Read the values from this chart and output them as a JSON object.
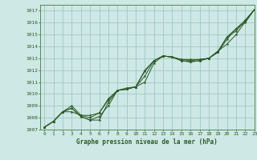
{
  "title": "Graphe pression niveau de la mer (hPa)",
  "bg_color": "#cde8e5",
  "grid_color": "#a0c8c4",
  "line_color": "#2d5a27",
  "spine_color": "#5a8a55",
  "xlim": [
    -0.5,
    23
  ],
  "ylim": [
    1007,
    1017.5
  ],
  "xticks": [
    0,
    1,
    2,
    3,
    4,
    5,
    6,
    7,
    8,
    9,
    10,
    11,
    12,
    13,
    14,
    15,
    16,
    17,
    18,
    19,
    20,
    21,
    22,
    23
  ],
  "yticks": [
    1007,
    1008,
    1009,
    1010,
    1011,
    1012,
    1013,
    1014,
    1015,
    1016,
    1017
  ],
  "lines": [
    [
      1007.2,
      1007.7,
      1008.5,
      1008.5,
      1008.2,
      1008.2,
      1008.4,
      1009.5,
      1010.3,
      1010.4,
      1010.6,
      1011.0,
      1012.6,
      1013.2,
      1013.1,
      1012.9,
      1012.9,
      1012.9,
      1013.0,
      1013.6,
      1014.2,
      1015.0,
      1016.1,
      1017.1
    ],
    [
      1007.2,
      1007.7,
      1008.5,
      1008.8,
      1008.1,
      1007.8,
      1007.8,
      1009.3,
      1010.3,
      1010.4,
      1010.6,
      1011.9,
      1012.8,
      1013.2,
      1013.1,
      1012.8,
      1012.7,
      1012.8,
      1013.0,
      1013.5,
      1014.6,
      1015.5,
      1016.2,
      1017.1
    ],
    [
      1007.2,
      1007.7,
      1008.5,
      1008.8,
      1008.1,
      1007.8,
      1008.1,
      1009.0,
      1010.3,
      1010.4,
      1010.6,
      1011.5,
      1012.8,
      1013.2,
      1013.1,
      1012.8,
      1012.7,
      1012.8,
      1013.0,
      1013.5,
      1014.8,
      1015.5,
      1016.0,
      1017.1
    ],
    [
      1007.2,
      1007.7,
      1008.5,
      1009.0,
      1008.2,
      1008.0,
      1008.4,
      1009.6,
      1010.3,
      1010.5,
      1010.6,
      1012.0,
      1012.8,
      1013.2,
      1013.1,
      1012.9,
      1012.8,
      1012.9,
      1013.0,
      1013.6,
      1014.8,
      1015.3,
      1016.2,
      1017.1
    ]
  ]
}
